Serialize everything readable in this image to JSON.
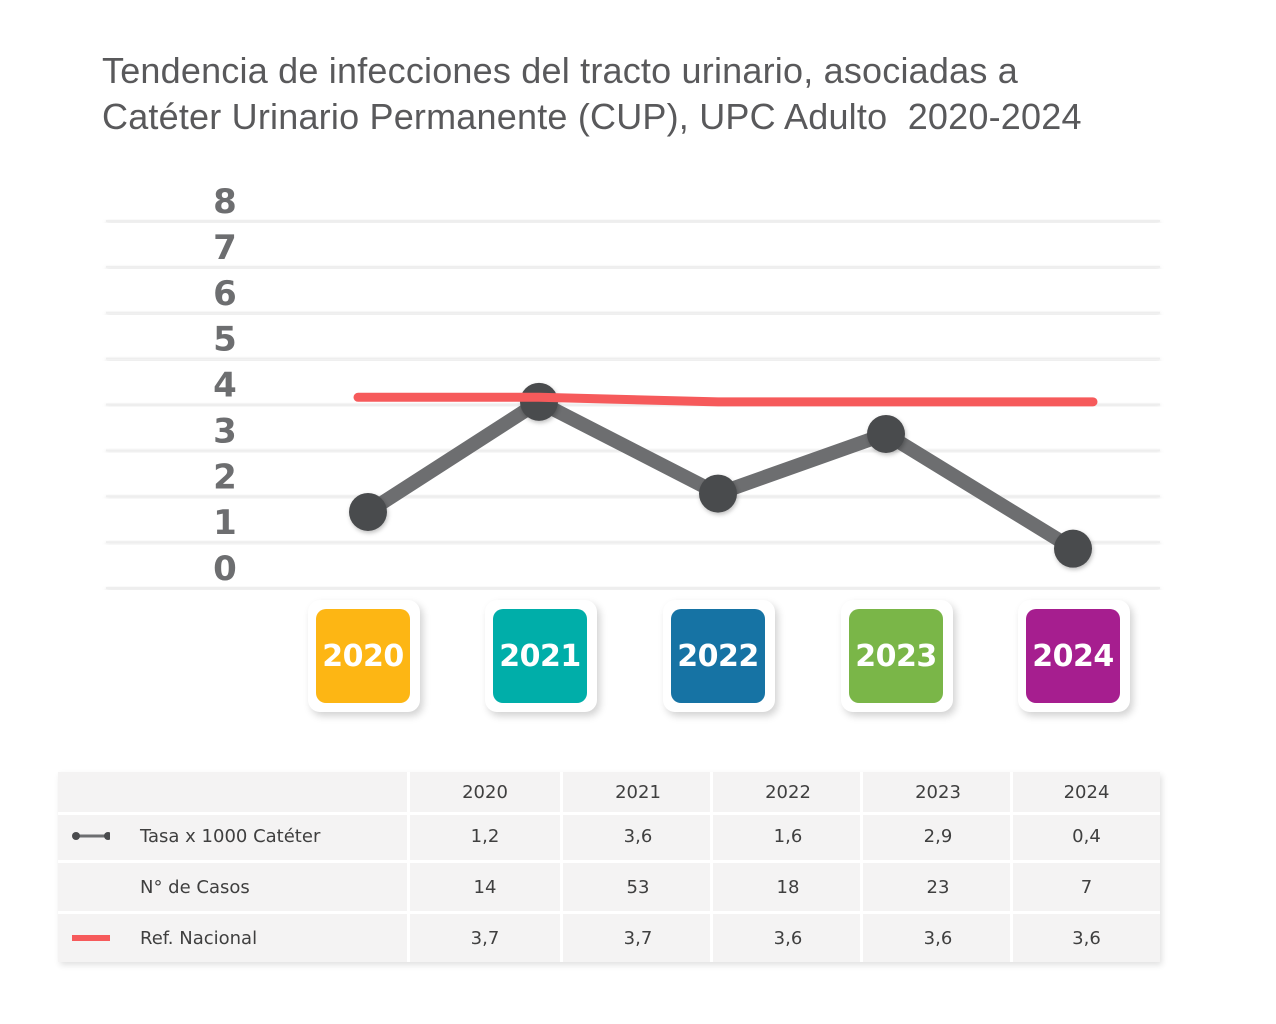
{
  "title": {
    "line1": "Tendencia de infecciones del tracto urinario, asociadas a",
    "line2": "Catéter Urinario Permanente (CUP), UPC Adulto  2020-2024"
  },
  "chart_data": {
    "type": "line",
    "title": "Tendencia de infecciones del tracto urinario, asociadas a Catéter Urinario Permanente (CUP), UPC Adulto  2020-2024",
    "categories": [
      "2020",
      "2021",
      "2022",
      "2023",
      "2024"
    ],
    "y_ticks": [
      "0",
      "1",
      "2",
      "3",
      "4",
      "5",
      "6",
      "7",
      "8"
    ],
    "ylim": [
      0,
      8
    ],
    "grid": true,
    "series": [
      {
        "name": "Tasa x 1000 Catéter",
        "values": [
          1.2,
          3.6,
          1.6,
          2.9,
          0.4
        ],
        "color": "#6d6e70",
        "marker_color": "#4a4b4d"
      },
      {
        "name": "Ref. Nacional",
        "values": [
          3.7,
          3.7,
          3.6,
          3.6,
          3.6
        ],
        "color": "#f65a5b"
      }
    ]
  },
  "badges": [
    {
      "label": "2020",
      "color": "#fdb614"
    },
    {
      "label": "2021",
      "color": "#00aea9"
    },
    {
      "label": "2022",
      "color": "#1673a4"
    },
    {
      "label": "2023",
      "color": "#7ab648"
    },
    {
      "label": "2024",
      "color": "#a61e8f"
    }
  ],
  "table": {
    "header": [
      "2020",
      "2021",
      "2022",
      "2023",
      "2024"
    ],
    "rows": [
      {
        "label": "Tasa x 1000 Catéter",
        "symbol": "line-marker-icon",
        "values": [
          "1,2",
          "3,6",
          "1,6",
          "2,9",
          "0,4"
        ]
      },
      {
        "label": "N° de Casos",
        "symbol": "",
        "values": [
          "14",
          "53",
          "18",
          "23",
          "7"
        ]
      },
      {
        "label": "Ref. Nacional",
        "symbol": "red-line-icon",
        "values": [
          "3,7",
          "3,7",
          "3,6",
          "3,6",
          "3,6"
        ]
      }
    ]
  }
}
